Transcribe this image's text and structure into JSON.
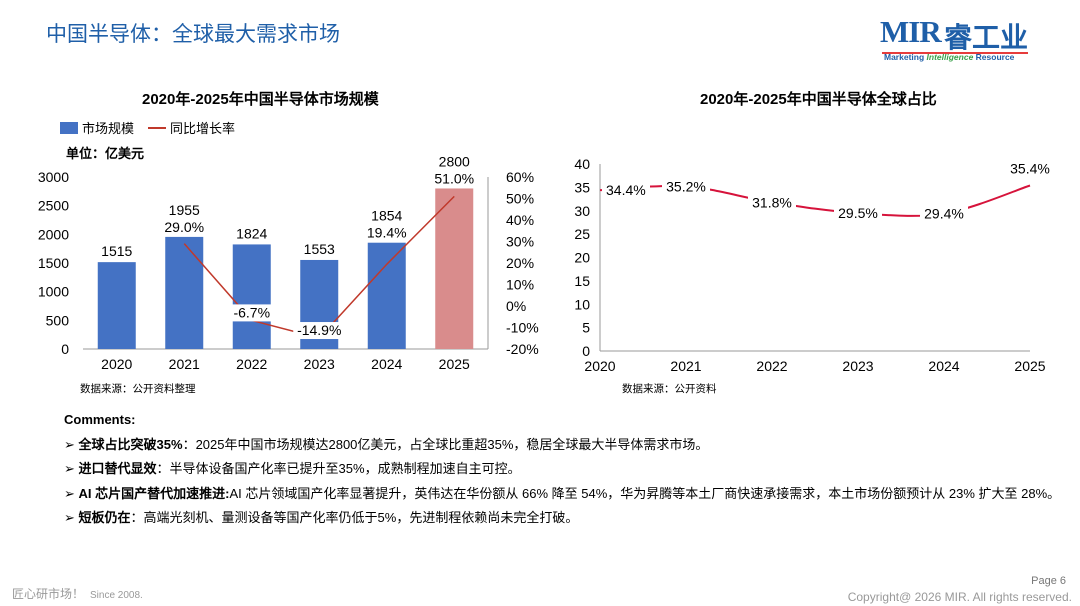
{
  "page": {
    "title": "中国半导体：全球最大需求市场",
    "page_number": "Page 6",
    "footer_slogan": "匠心研市场！",
    "footer_since": "Since 2008.",
    "copyright": "Copyright@ 2026 MIR. All rights reserved."
  },
  "logo": {
    "wordmark": "MIR",
    "cn_name": "睿工业",
    "tagline_1": "Marketing",
    "tagline_2": "Intelligence",
    "tagline_3": "Resource"
  },
  "colors": {
    "title_blue": "#1f5fa8",
    "bar_blue": "#4472c4",
    "bar_highlight": "#d98c8c",
    "growth_line": "#c0392b",
    "share_line": "#d6133b"
  },
  "chart_data": [
    {
      "type": "bar",
      "title": "2020年-2025年中国半导体市场规模",
      "unit_label": "单位：亿美元",
      "legend": [
        "市场规模",
        "同比增长率"
      ],
      "categories": [
        "2020",
        "2021",
        "2022",
        "2023",
        "2024",
        "2025"
      ],
      "series": [
        {
          "name": "市场规模",
          "axis": "left",
          "values": [
            1515,
            1955,
            1824,
            1553,
            1854,
            2800
          ],
          "labels": [
            "1515",
            "1955",
            "1824",
            "1553",
            "1854",
            "2800"
          ]
        },
        {
          "name": "同比增长率",
          "axis": "right",
          "type": "line",
          "values": [
            null,
            29.0,
            -6.7,
            -14.9,
            19.4,
            51.0
          ],
          "labels": [
            "",
            "29.0%",
            "-6.7%",
            "-14.9%",
            "19.4%",
            "51.0%"
          ]
        }
      ],
      "ylim": [
        0,
        3000
      ],
      "yticks": [
        "0",
        "500",
        "1000",
        "1500",
        "2000",
        "2500",
        "3000"
      ],
      "y2lim": [
        -20,
        60
      ],
      "y2ticks": [
        "-20%",
        "-10%",
        "0%",
        "10%",
        "20%",
        "30%",
        "40%",
        "50%",
        "60%"
      ],
      "source": "数据来源：公开资料整理"
    },
    {
      "type": "line",
      "title": "2020年-2025年中国半导体全球占比",
      "categories": [
        "2020",
        "2021",
        "2022",
        "2023",
        "2024",
        "2025"
      ],
      "series": [
        {
          "name": "全球占比",
          "values": [
            34.4,
            35.2,
            31.8,
            29.5,
            29.4,
            35.4
          ],
          "labels": [
            "34.4%",
            "35.2%",
            "31.8%",
            "29.5%",
            "29.4%",
            "35.4%"
          ]
        }
      ],
      "ylim": [
        0,
        40
      ],
      "yticks": [
        "0",
        "5",
        "10",
        "15",
        "20",
        "25",
        "30",
        "35",
        "40"
      ],
      "source": "数据来源：公开资料"
    }
  ],
  "comments": {
    "heading": "Comments:",
    "items": [
      {
        "bullet": "➢",
        "label": "全球占比突破35%",
        "text": "：2025年中国市场规模达2800亿美元，占全球比重超35%，稳居全球最大半导体需求市场。"
      },
      {
        "bullet": "➢",
        "label": "进口替代显效",
        "text": "：半导体设备国产化率已提升至35%，成熟制程加速自主可控。"
      },
      {
        "bullet": "➢",
        "label": "AI 芯片国产替代加速推进:",
        "text": "AI 芯片领域国产化率显著提升，英伟达在华份额从 66% 降至 54%，华为昇腾等本土厂商快速承接需求，本土市场份额预计从 23% 扩大至 28%。"
      },
      {
        "bullet": "➢",
        "label": "短板仍在",
        "text": "：高端光刻机、量测设备等国产化率仍低于5%，先进制程依赖尚未完全打破。"
      }
    ]
  }
}
